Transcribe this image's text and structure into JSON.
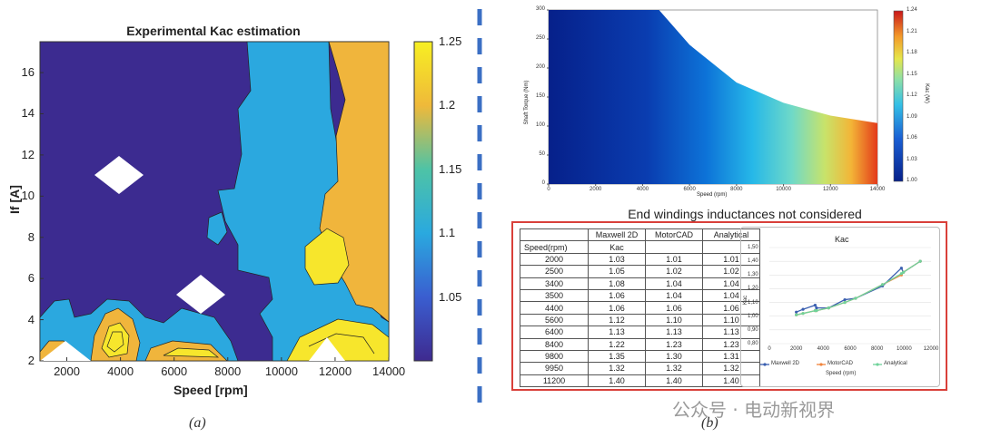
{
  "left_panel": {
    "title": "Experimental Kac estimation",
    "xlabel": "Speed [rpm]",
    "ylabel": "If [A]",
    "caption": "(a)"
  },
  "right_panel": {
    "caption": "(b)",
    "table_title": "End windings inductances not considered",
    "heatmap_xlabel": "Speed (rpm)",
    "heatmap_ylabel": "Shaft Torque (Nm)",
    "heatmap_cbar_label": "Kac (W)"
  },
  "watermark": "公众号 · 电动新视界",
  "chart_data": [
    {
      "type": "heatmap",
      "title": "Experimental Kac estimation",
      "xlabel": "Speed [rpm]",
      "ylabel": "If [A]",
      "xlim": [
        1000,
        14000
      ],
      "ylim": [
        2,
        17.5
      ],
      "xticks": [
        "2000",
        "4000",
        "6000",
        "8000",
        "10000",
        "12000",
        "14000"
      ],
      "yticks": [
        "2",
        "4",
        "6",
        "8",
        "10",
        "12",
        "14",
        "16"
      ],
      "colorbar": {
        "min": 1.0,
        "max": 1.25,
        "ticks": [
          "1.05",
          "1.1",
          "1.15",
          "1.2",
          "1.25"
        ]
      },
      "colormap": [
        "#3c2b90",
        "#2aa9df",
        "#f0b83c",
        "#f5ea2a"
      ]
    },
    {
      "type": "heatmap",
      "xlabel": "Speed (rpm)",
      "ylabel": "Shaft Torque (Nm)",
      "xlim": [
        0,
        14000
      ],
      "ylim": [
        0,
        300
      ],
      "xticks": [
        "0",
        "2000",
        "4000",
        "6000",
        "8000",
        "10000",
        "12000",
        "14000"
      ],
      "yticks": [
        "0",
        "50",
        "100",
        "150",
        "200",
        "250",
        "300"
      ],
      "colorbar": {
        "label": "Kac (W)",
        "min": 1.0,
        "max": 1.24,
        "ticks": [
          "1.24",
          "1.21",
          "1.18",
          "1.15",
          "1.12",
          "1.09",
          "1.06",
          "1.03",
          "1.00"
        ]
      },
      "torque_limit_x": [
        0,
        4700,
        6000,
        8000,
        10000,
        12000,
        14000
      ],
      "torque_limit_y": [
        300,
        300,
        240,
        175,
        140,
        118,
        105
      ]
    },
    {
      "type": "table",
      "title": "End windings inductances not considered",
      "columns": [
        "",
        "Maxwell 2D",
        "MotorCAD",
        "Analytical"
      ],
      "subheader": [
        "Speed(rpm)",
        "Kac",
        "",
        ""
      ],
      "rows": [
        [
          "2000",
          "1.03",
          "1.01",
          "1.01"
        ],
        [
          "2500",
          "1.05",
          "1.02",
          "1.02"
        ],
        [
          "3400",
          "1.08",
          "1.04",
          "1.04"
        ],
        [
          "3500",
          "1.06",
          "1.04",
          "1.04"
        ],
        [
          "4400",
          "1.06",
          "1.06",
          "1.06"
        ],
        [
          "5600",
          "1.12",
          "1.10",
          "1.10"
        ],
        [
          "6400",
          "1.13",
          "1.13",
          "1.13"
        ],
        [
          "8400",
          "1.22",
          "1.23",
          "1.23"
        ],
        [
          "9800",
          "1.35",
          "1.30",
          "1.31"
        ],
        [
          "9950",
          "1.32",
          "1.32",
          "1.32"
        ],
        [
          "11200",
          "1.40",
          "1.40",
          "1.40"
        ]
      ]
    },
    {
      "type": "line",
      "title": "Kac",
      "xlabel": "Speed (rpm)",
      "ylabel": "Kac",
      "xlim": [
        0,
        12000
      ],
      "ylim": [
        0.8,
        1.5
      ],
      "xticks": [
        "0",
        "2000",
        "4000",
        "6000",
        "8000",
        "10000",
        "12000"
      ],
      "yticks": [
        "0,80",
        "0,90",
        "1,00",
        "1,10",
        "1,20",
        "1,30",
        "1,40",
        "1,50"
      ],
      "x": [
        2000,
        2500,
        3400,
        3500,
        4400,
        5600,
        6400,
        8400,
        9800,
        9950,
        11200
      ],
      "series": [
        {
          "name": "Maxwell 2D",
          "color": "#3a5fb0",
          "values": [
            1.03,
            1.05,
            1.08,
            1.06,
            1.06,
            1.12,
            1.13,
            1.22,
            1.35,
            1.32,
            1.4
          ]
        },
        {
          "name": "MotorCAD",
          "color": "#f0843c",
          "values": [
            1.01,
            1.02,
            1.04,
            1.04,
            1.06,
            1.1,
            1.13,
            1.23,
            1.3,
            1.32,
            1.4
          ]
        },
        {
          "name": "Analytical",
          "color": "#6fd39a",
          "values": [
            1.01,
            1.02,
            1.04,
            1.04,
            1.06,
            1.1,
            1.13,
            1.23,
            1.31,
            1.32,
            1.4
          ]
        }
      ]
    }
  ]
}
